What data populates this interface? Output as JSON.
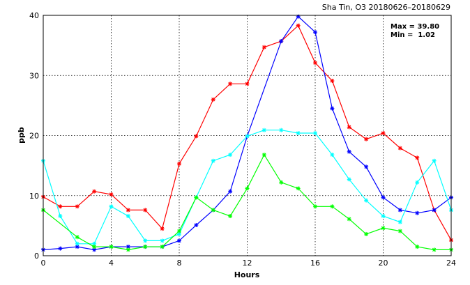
{
  "chart_data": {
    "type": "line",
    "title": "Sha Tin, O3 20180626–20180629",
    "xlabel": "Hours",
    "ylabel": "ppb",
    "xlim": [
      0,
      24
    ],
    "ylim": [
      0,
      40
    ],
    "xticks": [
      0,
      4,
      8,
      12,
      16,
      20,
      24
    ],
    "yticks": [
      0,
      10,
      20,
      30,
      40
    ],
    "grid": true,
    "annotations": [
      "Max = 39.80",
      "Min =  1.02"
    ],
    "x": [
      0,
      1,
      2,
      3,
      4,
      5,
      6,
      7,
      8,
      9,
      10,
      11,
      12,
      13,
      14,
      15,
      16,
      17,
      18,
      19,
      20,
      21,
      22,
      23,
      24
    ],
    "series": [
      {
        "color": "#ff0000",
        "values": [
          9.8,
          8.2,
          8.2,
          10.7,
          10.2,
          7.6,
          7.6,
          4.5,
          15.3,
          19.9,
          26.0,
          28.6,
          28.6,
          34.7,
          35.7,
          38.3,
          32.1,
          29.1,
          21.4,
          19.4,
          20.4,
          17.9,
          16.3,
          7.6,
          2.6
        ]
      },
      {
        "color": "#0000ff",
        "values": [
          1.0,
          1.2,
          1.5,
          1.0,
          1.5,
          1.5,
          1.5,
          1.5,
          2.5,
          5.1,
          7.6,
          10.7,
          19.9,
          null,
          35.7,
          39.8,
          37.2,
          24.5,
          17.3,
          14.8,
          9.7,
          7.6,
          7.1,
          7.6,
          9.7
        ]
      },
      {
        "color": "#00ffff",
        "values": [
          15.8,
          6.6,
          2.0,
          2.0,
          8.2,
          6.6,
          2.5,
          2.5,
          3.6,
          9.7,
          15.8,
          16.8,
          19.9,
          20.9,
          20.9,
          20.4,
          20.4,
          16.8,
          12.7,
          9.2,
          6.6,
          5.6,
          12.2,
          15.8,
          7.6
        ]
      },
      {
        "color": "#00ff00",
        "values": [
          7.6,
          null,
          3.1,
          1.5,
          1.5,
          1.0,
          1.5,
          1.5,
          4.1,
          9.7,
          7.6,
          6.6,
          11.2,
          16.8,
          12.2,
          11.2,
          8.2,
          8.2,
          6.1,
          3.6,
          4.6,
          4.1,
          1.5,
          1.0,
          1.0
        ]
      }
    ]
  }
}
